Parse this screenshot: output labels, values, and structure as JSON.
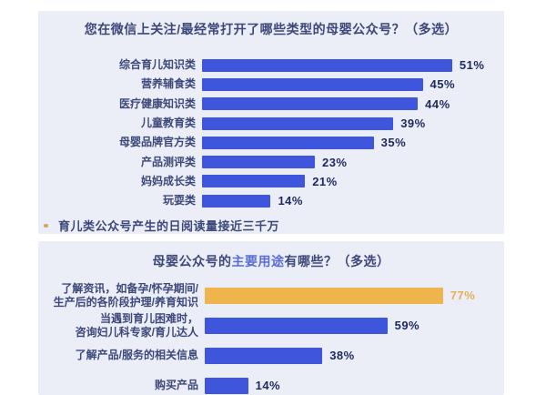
{
  "colors": {
    "page_bg": "#ffffff",
    "panel_bg": "#ebeef6",
    "bar_blue": "#3e56db",
    "bar_orange": "#f0b44c",
    "text_navy": "#1c2a5e",
    "label_navy": "#3c4879",
    "title_navy": "#3c4879",
    "title_highlight": "#5b6cd9",
    "value_orange": "#e8ae58"
  },
  "chart_data": [
    {
      "type": "bar",
      "orientation": "horizontal",
      "title": "您在微信上关注/最经常打开了哪些类型的母婴公众号？（多选）",
      "categories": [
        "综合育儿知识类",
        "营养辅食类",
        "医疗健康知识类",
        "儿童教育类",
        "母婴品牌官方类",
        "产品测评类",
        "妈妈成长类",
        "玩耍类"
      ],
      "values": [
        51,
        45,
        44,
        39,
        35,
        23,
        21,
        14
      ],
      "value_labels": [
        "51%",
        "45%",
        "44%",
        "39%",
        "35%",
        "23%",
        "21%",
        "14%"
      ],
      "unit": "%",
      "xlim": [
        0,
        95
      ],
      "grid": false,
      "legend": false,
      "note": "育儿类公众号产生的日阅读量接近三千万"
    },
    {
      "type": "bar",
      "orientation": "horizontal",
      "title_prefix": "母婴公众号的",
      "title_highlight": "主要用途",
      "title_suffix": "有哪些？（多选）",
      "categories": [
        "了解资讯，如备孕/怀孕期间/\n生产后的各阶段护理/养育知识",
        "当遇到育儿困难时，\n咨询妇儿科专家/育儿达人",
        "了解产品/服务的相关信息",
        "购买产品"
      ],
      "values": [
        77,
        59,
        38,
        14
      ],
      "value_labels": [
        "77%",
        "59%",
        "38%",
        "14%"
      ],
      "unit": "%",
      "xlim": [
        0,
        97
      ],
      "grid": false,
      "legend": false,
      "highlight_index": 0
    }
  ]
}
